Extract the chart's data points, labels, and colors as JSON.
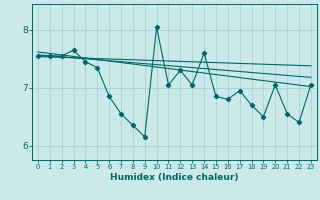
{
  "title": "",
  "xlabel": "Humidex (Indice chaleur)",
  "ylabel": "",
  "bg_color": "#cce9e9",
  "grid_color": "#aad4d4",
  "line_color": "#006666",
  "xlim": [
    -0.5,
    23.5
  ],
  "ylim": [
    5.75,
    8.45
  ],
  "yticks": [
    6,
    7,
    8
  ],
  "xticks": [
    0,
    1,
    2,
    3,
    4,
    5,
    6,
    7,
    8,
    9,
    10,
    11,
    12,
    13,
    14,
    15,
    16,
    17,
    18,
    19,
    20,
    21,
    22,
    23
  ],
  "scatter_x": [
    0,
    1,
    2,
    3,
    4,
    5,
    6,
    7,
    8,
    9,
    10,
    11,
    12,
    13,
    14,
    15,
    16,
    17,
    18,
    19,
    20,
    21,
    22,
    23
  ],
  "scatter_y": [
    7.55,
    7.55,
    7.55,
    7.65,
    7.45,
    7.35,
    6.85,
    6.55,
    6.35,
    6.15,
    8.05,
    7.05,
    7.3,
    7.05,
    7.6,
    6.85,
    6.8,
    6.95,
    6.7,
    6.5,
    7.05,
    6.55,
    6.4,
    7.05
  ],
  "trend1_x": [
    0,
    23
  ],
  "trend1_y": [
    7.62,
    7.02
  ],
  "trend2_x": [
    0,
    23
  ],
  "trend2_y": [
    7.57,
    7.18
  ],
  "trend3_x": [
    0,
    23
  ],
  "trend3_y": [
    7.54,
    7.38
  ]
}
